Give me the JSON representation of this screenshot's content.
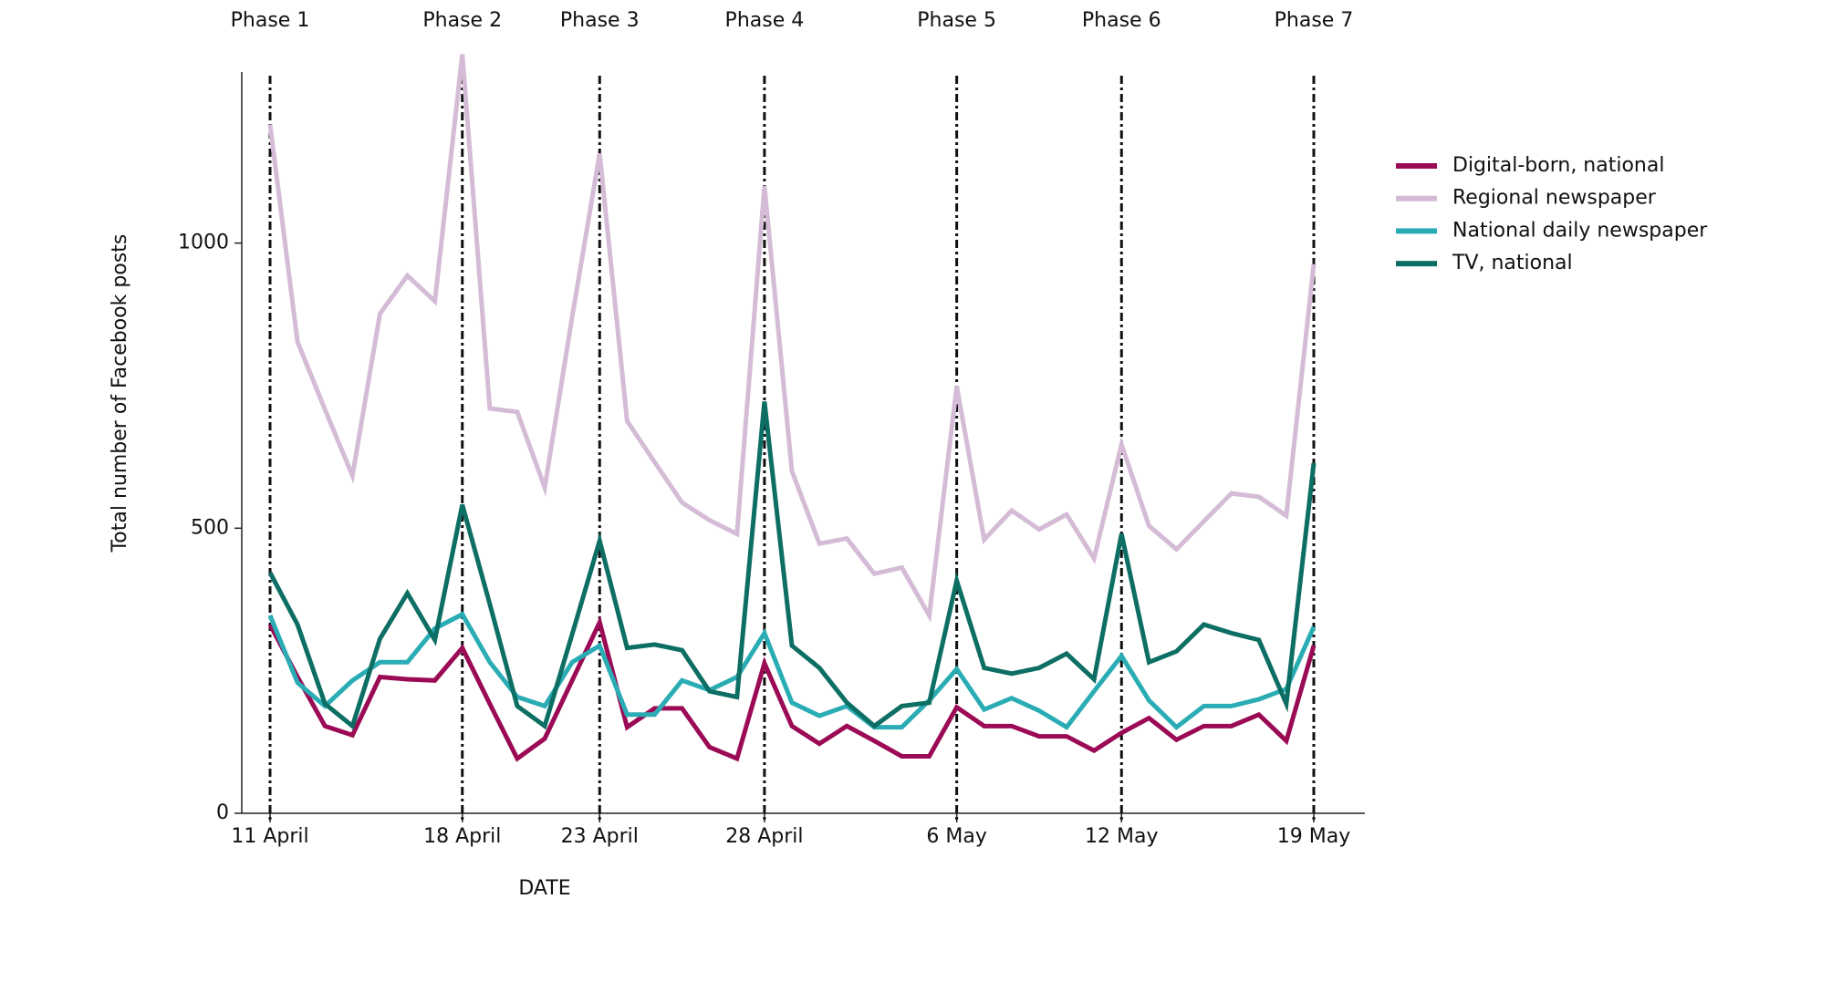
{
  "chart_data": {
    "type": "line",
    "x_label": "DATE",
    "y_label": "Total number of Facebook posts",
    "categories": [
      "11 April",
      null,
      null,
      null,
      null,
      null,
      null,
      "18 April",
      null,
      null,
      null,
      null,
      "23 April",
      null,
      null,
      null,
      null,
      null,
      "28 April",
      null,
      null,
      null,
      null,
      null,
      null,
      "6 May",
      null,
      null,
      null,
      null,
      null,
      "12 May",
      null,
      null,
      null,
      null,
      null,
      null,
      "19 May"
    ],
    "phases": [
      "Phase 1",
      "Phase 2",
      "Phase 3",
      "Phase 4",
      "Phase 5",
      "Phase 6",
      "Phase 7"
    ],
    "ylim": [
      0,
      1300
    ],
    "yticks": [
      0,
      500,
      1000
    ],
    "series": [
      {
        "name": "Digital-born, national",
        "color": "#9b0a55",
        "values": [
          331,
          239,
          153,
          137,
          239,
          235,
          233,
          290,
          192,
          96,
          131,
          233,
          335,
          151,
          184,
          184,
          116,
          96,
          263,
          153,
          122,
          153,
          127,
          100,
          100,
          186,
          153,
          153,
          135,
          135,
          110,
          141,
          167,
          129,
          153,
          153,
          173,
          127,
          294
        ]
      },
      {
        "name": "Regional newspaper",
        "color": "#d4bcd6",
        "values": [
          1208,
          827,
          708,
          592,
          876,
          943,
          898,
          1331,
          710,
          704,
          571,
          871,
          1157,
          688,
          616,
          545,
          514,
          490,
          1100,
          600,
          473,
          482,
          420,
          431,
          347,
          749,
          480,
          531,
          498,
          524,
          447,
          647,
          504,
          463,
          512,
          561,
          555,
          522,
          963
        ]
      },
      {
        "name": "National daily newspaper",
        "color": "#2aacb4",
        "values": [
          347,
          229,
          188,
          233,
          265,
          265,
          324,
          349,
          265,
          204,
          188,
          265,
          294,
          173,
          173,
          233,
          216,
          239,
          316,
          194,
          171,
          188,
          151,
          151,
          198,
          253,
          182,
          202,
          180,
          151,
          214,
          276,
          198,
          151,
          188,
          188,
          200,
          218,
          327
        ]
      },
      {
        "name": "TV, national",
        "color": "#0d6e63",
        "values": [
          422,
          331,
          192,
          153,
          306,
          386,
          304,
          541,
          367,
          188,
          153,
          314,
          478,
          290,
          296,
          286,
          214,
          204,
          722,
          294,
          255,
          194,
          153,
          188,
          194,
          408,
          255,
          245,
          255,
          280,
          235,
          490,
          265,
          284,
          331,
          316,
          304,
          192,
          614
        ]
      }
    ]
  }
}
